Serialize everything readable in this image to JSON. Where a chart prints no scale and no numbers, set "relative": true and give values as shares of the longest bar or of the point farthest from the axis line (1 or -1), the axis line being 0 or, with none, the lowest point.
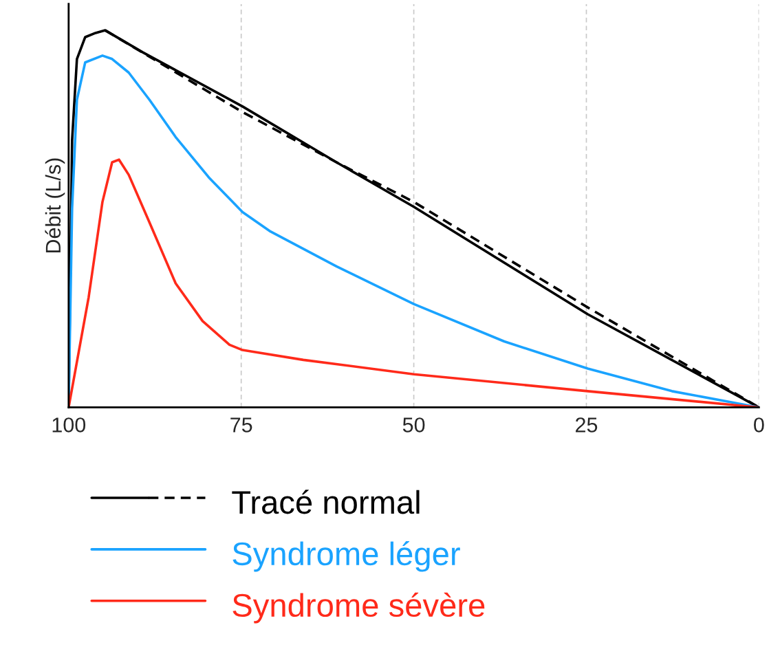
{
  "chart_data": {
    "type": "line",
    "relative": true,
    "ylabel": "Débit (L/s)",
    "xlim": [
      100,
      0
    ],
    "xticks": [
      100,
      75,
      50,
      25,
      0
    ],
    "grid": "x",
    "legend": "bottom left",
    "marker": "none",
    "series": [
      {
        "name": "Tracé normal",
        "color": "#000000",
        "line_style": "solid",
        "x": [
          100,
          99.5,
          98.8,
          97.6,
          96.1,
          94.7,
          89.3,
          74.8,
          61.2,
          50,
          24.8,
          0
        ],
        "values": [
          0,
          0.708,
          0.924,
          0.982,
          0.993,
          1.0,
          0.942,
          0.798,
          0.65,
          0.532,
          0.247,
          0
        ]
      },
      {
        "color": "#000000",
        "line_style": "dashed",
        "x": [
          94.7,
          74.8,
          61.2,
          50,
          24.8,
          0
        ],
        "values": [
          1.0,
          0.783,
          0.65,
          0.545,
          0.265,
          0
        ]
      },
      {
        "name": "Syndrome léger",
        "color": "#1aa3ff",
        "line_style": "solid",
        "x": [
          100,
          99.5,
          98.8,
          97.6,
          95.1,
          93.7,
          91.3,
          88.3,
          84.5,
          79.6,
          74.8,
          70.9,
          61.2,
          50,
          36.9,
          24.8,
          12.6,
          0
        ],
        "values": [
          0,
          0.527,
          0.816,
          0.915,
          0.933,
          0.924,
          0.888,
          0.816,
          0.717,
          0.608,
          0.518,
          0.468,
          0.374,
          0.274,
          0.175,
          0.103,
          0.043,
          0
        ]
      },
      {
        "name": "Syndrome sévère",
        "color": "#ff2a1a",
        "line_style": "solid",
        "x": [
          100,
          97.1,
          95.1,
          93.7,
          92.7,
          91.3,
          88.3,
          84.5,
          80.6,
          76.7,
          74.8,
          66.0,
          50,
          24.8,
          0
        ],
        "values": [
          0,
          0.292,
          0.545,
          0.65,
          0.657,
          0.617,
          0.491,
          0.329,
          0.229,
          0.166,
          0.152,
          0.126,
          0.088,
          0.043,
          0
        ]
      }
    ]
  }
}
